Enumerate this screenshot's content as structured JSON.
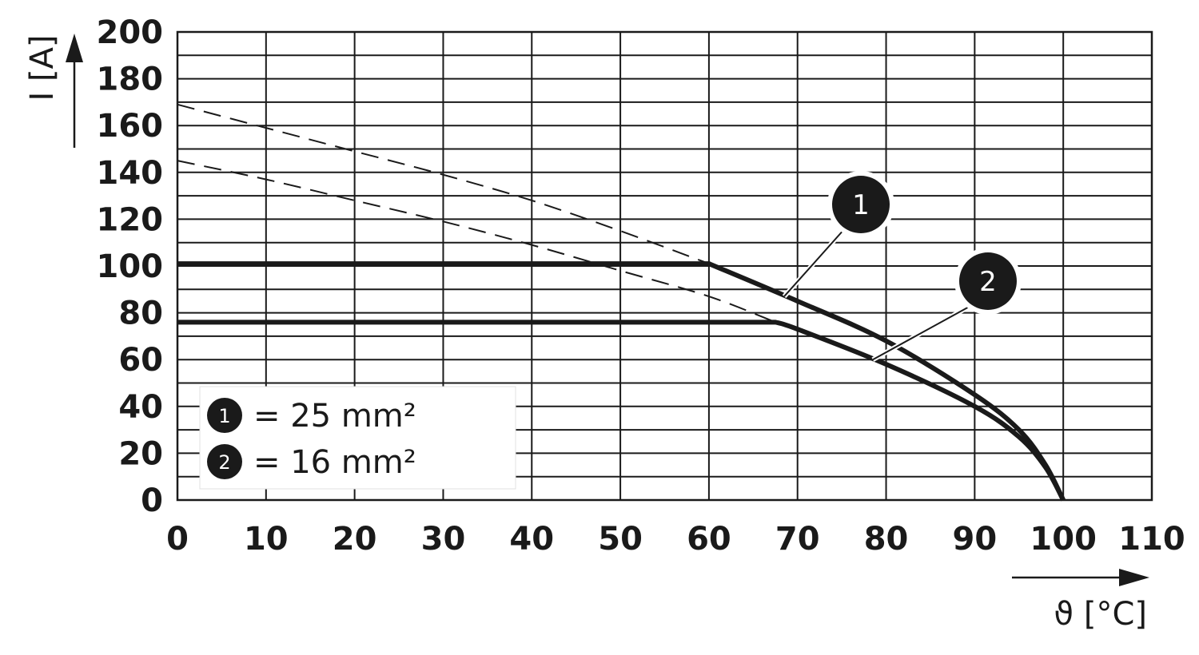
{
  "chart_data": {
    "type": "line",
    "title": "",
    "xlabel": "ϑ [°C]",
    "ylabel": "I [A]",
    "xlim": [
      0,
      110
    ],
    "ylim": [
      0,
      200
    ],
    "x_ticks": [
      0,
      10,
      20,
      30,
      40,
      50,
      60,
      70,
      80,
      90,
      100,
      110
    ],
    "y_ticks": [
      0,
      20,
      40,
      60,
      80,
      100,
      120,
      140,
      160,
      180,
      200
    ],
    "x_tick_labels": [
      "0",
      "10",
      "20",
      "30",
      "40",
      "50",
      "60",
      "70",
      "80",
      "90",
      "100",
      "110"
    ],
    "y_tick_labels": [
      "0",
      "20",
      "40",
      "60",
      "80",
      "100",
      "120",
      "140",
      "160",
      "180",
      "200"
    ],
    "grid": true,
    "grid_minor_y_step": 10,
    "legend_position": "bottom-left",
    "series": [
      {
        "marker": "1",
        "legend_label": "= 25 mm²",
        "color": "#1a1a1a",
        "x": [
          0,
          60,
          70,
          80,
          90,
          95,
          98,
          100
        ],
        "y": [
          101,
          101,
          85,
          68,
          45,
          30,
          15,
          0
        ],
        "dashed_x": [
          0,
          10,
          20,
          30,
          40,
          50,
          60
        ],
        "dashed_y": [
          169,
          159,
          149,
          139,
          128,
          115,
          101
        ]
      },
      {
        "marker": "2",
        "legend_label": "= 16 mm²",
        "color": "#1a1a1a",
        "x": [
          0,
          67.5,
          70,
          80,
          90,
          95,
          98,
          100
        ],
        "y": [
          76,
          76,
          73,
          58,
          40,
          27,
          14,
          0
        ],
        "dashed_x": [
          0,
          10,
          20,
          30,
          40,
          50,
          60,
          67.5
        ],
        "dashed_y": [
          145,
          137,
          128,
          119,
          109,
          98,
          87,
          76
        ]
      }
    ],
    "callouts": [
      {
        "label": "1",
        "series": 0,
        "point_x": 68.5,
        "point_y": 87
      },
      {
        "label": "2",
        "series": 1,
        "point_x": 78.5,
        "point_y": 60
      }
    ]
  }
}
